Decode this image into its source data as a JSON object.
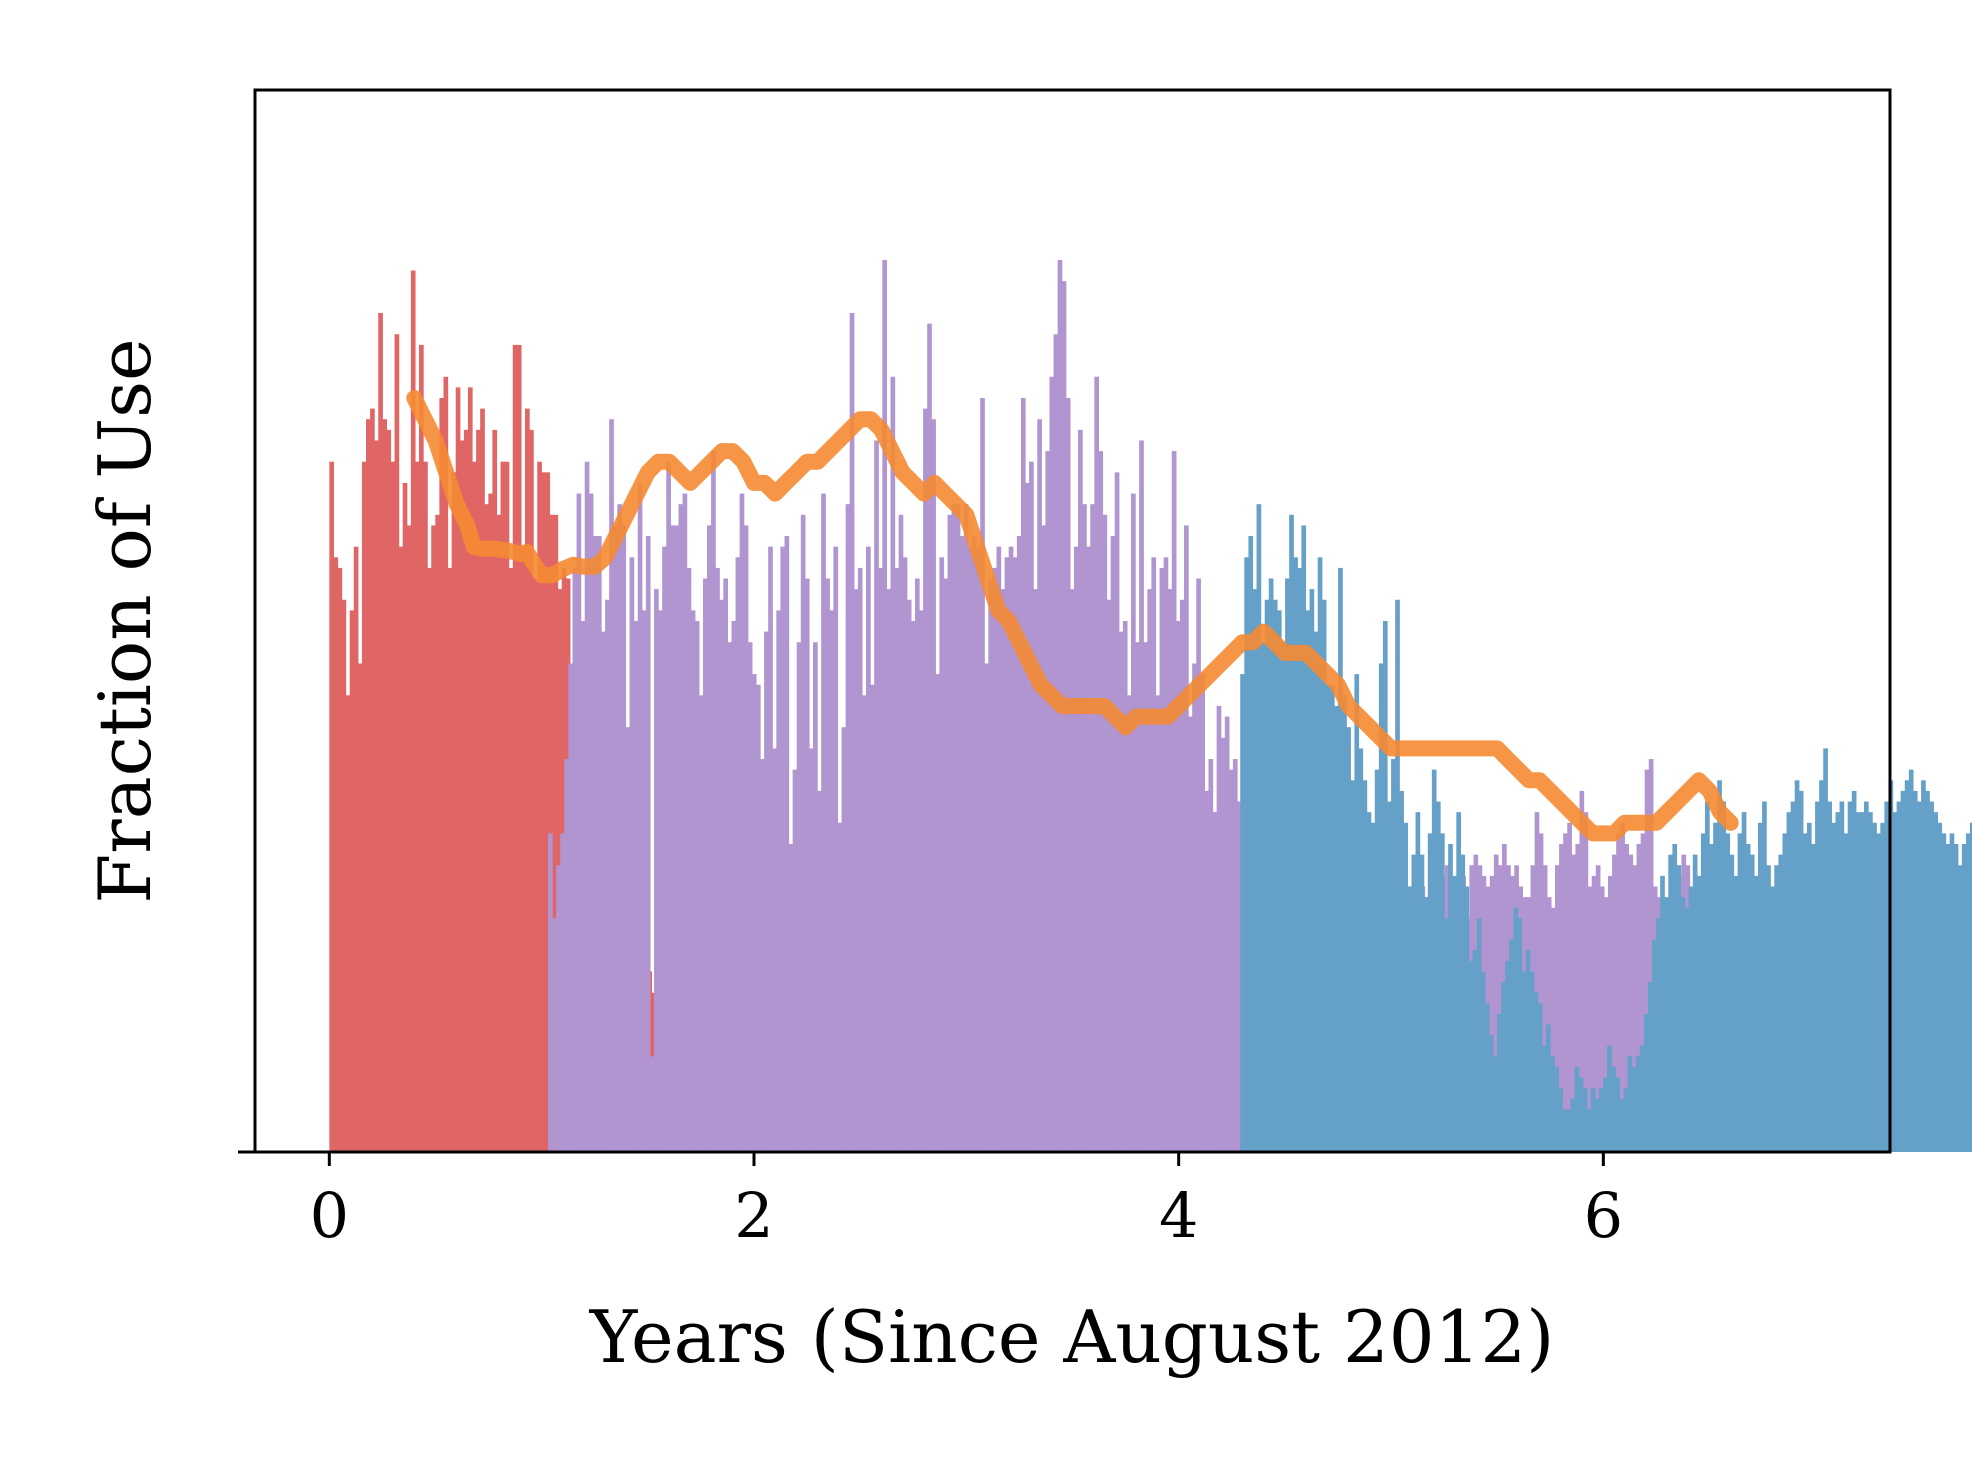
{
  "chart_data": {
    "type": "bar",
    "title": "",
    "xlabel": "Years (Since August 2012)",
    "ylabel": "Fraction of Use",
    "xlim": [
      -0.35,
      7.35
    ],
    "ylim": [
      0,
      1
    ],
    "xticks": [
      0,
      2,
      4,
      6
    ],
    "yticks": [],
    "grid": false,
    "legend": "none",
    "bar_width": 0.0192,
    "series": [
      {
        "color": "#e06666",
        "x_start": 0,
        "x_step": 0.0192,
        "values": [
          0.65,
          0.56,
          0.55,
          0.52,
          0.43,
          0.51,
          0.57,
          0.46,
          0.65,
          0.69,
          0.7,
          0.67,
          0.79,
          0.69,
          0.68,
          0.65,
          0.77,
          0.57,
          0.63,
          0.59,
          0.83,
          0.65,
          0.76,
          0.65,
          0.55,
          0.59,
          0.6,
          0.71,
          0.73,
          0.55,
          0.64,
          0.72,
          0.67,
          0.68,
          0.72,
          0.65,
          0.68,
          0.7,
          0.61,
          0.62,
          0.68,
          0.6,
          0.65,
          0.65,
          0.55,
          0.76,
          0.76,
          0.57,
          0.7,
          0.68,
          0.54,
          0.65,
          0.64,
          0.64,
          0.6,
          0.6,
          0.53,
          0.55,
          0.54,
          0.43,
          0.43,
          0.31,
          0.31,
          0.32,
          0.31,
          0.29,
          0.29,
          0.25,
          0.25,
          0.28,
          0.24,
          0.27,
          0.26,
          0.26,
          0.21,
          0.21,
          0.19,
          0.19,
          0.17,
          0.15,
          0.15,
          0.17,
          0.15,
          0.14,
          0.14,
          0.14,
          0.16,
          0.15,
          0.14,
          0.16
        ]
      },
      {
        "color": "#b095d0",
        "x_start": 1.03,
        "x_step": 0.0192,
        "values": [
          0.3,
          0.22,
          0.27,
          0.3,
          0.37,
          0.46,
          0.55,
          0.62,
          0.5,
          0.65,
          0.62,
          0.58,
          0.58,
          0.49,
          0.52,
          0.69,
          0.59,
          0.61,
          0.59,
          0.4,
          0.56,
          0.5,
          0.63,
          0.51,
          0.58,
          0.09,
          0.53,
          0.51,
          0.57,
          0.65,
          0.59,
          0.59,
          0.61,
          0.62,
          0.55,
          0.51,
          0.5,
          0.43,
          0.54,
          0.59,
          0.66,
          0.55,
          0.52,
          0.54,
          0.48,
          0.5,
          0.56,
          0.62,
          0.59,
          0.48,
          0.45,
          0.44,
          0.37,
          0.49,
          0.57,
          0.38,
          0.51,
          0.57,
          0.58,
          0.29,
          0.36,
          0.48,
          0.6,
          0.54,
          0.38,
          0.48,
          0.34,
          0.62,
          0.54,
          0.51,
          0.57,
          0.31,
          0.4,
          0.61,
          0.79,
          0.53,
          0.55,
          0.43,
          0.57,
          0.44,
          0.67,
          0.55,
          0.84,
          0.53,
          0.73,
          0.55,
          0.6,
          0.56,
          0.52,
          0.5,
          0.54,
          0.51,
          0.7,
          0.78,
          0.69,
          0.45,
          0.56,
          0.54,
          0.6,
          0.61,
          0.61,
          0.58,
          0.61,
          0.57,
          0.58,
          0.57,
          0.71,
          0.46,
          0.54,
          0.55,
          0.57,
          0.53,
          0.56,
          0.57,
          0.56,
          0.58,
          0.71,
          0.63,
          0.65,
          0.53,
          0.69,
          0.59,
          0.66,
          0.73,
          0.77,
          0.84,
          0.82,
          0.71,
          0.53,
          0.57,
          0.68,
          0.61,
          0.57,
          0.61,
          0.73,
          0.66,
          0.6,
          0.52,
          0.58,
          0.64,
          0.49,
          0.5,
          0.43,
          0.62,
          0.48,
          0.67,
          0.48,
          0.53,
          0.56,
          0.43,
          0.55,
          0.56,
          0.53,
          0.66,
          0.5,
          0.52,
          0.59,
          0.41,
          0.46,
          0.54,
          0.45,
          0.34,
          0.37,
          0.32,
          0.42,
          0.39,
          0.41,
          0.36,
          0.37,
          0.33,
          0.32,
          0.37,
          0.4,
          0.42,
          0.44,
          0.39,
          0.43,
          0.37,
          0.31,
          0.34,
          0.38,
          0.35,
          0.33,
          0.4,
          0.32,
          0.3,
          0.36,
          0.31,
          0.33,
          0.29,
          0.28,
          0.23,
          0.25,
          0.24,
          0.25,
          0.23,
          0.26,
          0.27,
          0.27,
          0.24,
          0.31,
          0.26,
          0.22,
          0.35,
          0.28,
          0.31,
          0.29,
          0.27,
          0.24,
          0.25,
          0.2,
          0.24,
          0.22,
          0.23,
          0.25,
          0.24,
          0.26,
          0.31,
          0.25,
          0.26,
          0.27,
          0.23,
          0.24,
          0.25,
          0.26,
          0.22,
          0.27,
          0.28,
          0.27,
          0.26,
          0.25,
          0.26,
          0.28,
          0.27,
          0.29,
          0.27,
          0.26,
          0.27,
          0.25,
          0.24,
          0.24,
          0.27,
          0.32,
          0.3,
          0.27,
          0.24,
          0.23,
          0.27,
          0.29,
          0.3,
          0.31,
          0.28,
          0.29,
          0.34,
          0.32,
          0.25,
          0.26,
          0.27,
          0.25,
          0.24,
          0.26,
          0.28,
          0.3,
          0.31,
          0.29,
          0.28,
          0.27,
          0.29,
          0.3,
          0.36,
          0.37,
          0.25,
          0.24,
          0.21,
          0.23,
          0.26,
          0.25,
          0.26,
          0.28,
          0.27,
          0.25,
          0.26,
          0.24,
          0.25,
          0.23,
          0.27,
          0.26
        ]
      },
      {
        "color": "#64a0c8",
        "x_start": 4.29,
        "x_step": 0.0192,
        "values": [
          0.45,
          0.56,
          0.58,
          0.53,
          0.61,
          0.48,
          0.52,
          0.54,
          0.52,
          0.51,
          0.48,
          0.54,
          0.6,
          0.56,
          0.55,
          0.59,
          0.51,
          0.53,
          0.49,
          0.56,
          0.52,
          0.44,
          0.44,
          0.42,
          0.55,
          0.43,
          0.4,
          0.35,
          0.45,
          0.38,
          0.35,
          0.32,
          0.31,
          0.36,
          0.46,
          0.5,
          0.33,
          0.37,
          0.52,
          0.34,
          0.31,
          0.25,
          0.28,
          0.32,
          0.28,
          0.24,
          0.3,
          0.36,
          0.33,
          0.3,
          0.22,
          0.29,
          0.26,
          0.32,
          0.28,
          0.25,
          0.18,
          0.19,
          0.22,
          0.17,
          0.14,
          0.11,
          0.09,
          0.13,
          0.16,
          0.18,
          0.2,
          0.23,
          0.22,
          0.17,
          0.19,
          0.17,
          0.15,
          0.14,
          0.1,
          0.12,
          0.09,
          0.08,
          0.06,
          0.04,
          0.04,
          0.05,
          0.08,
          0.07,
          0.06,
          0.04,
          0.06,
          0.05,
          0.06,
          0.07,
          0.1,
          0.08,
          0.07,
          0.05,
          0.06,
          0.09,
          0.08,
          0.09,
          0.1,
          0.13,
          0.16,
          0.2,
          0.22,
          0.26,
          0.24,
          0.28,
          0.29,
          0.27,
          0.24,
          0.23,
          0.25,
          0.28,
          0.26,
          0.3,
          0.33,
          0.29,
          0.31,
          0.35,
          0.33,
          0.3,
          0.28,
          0.26,
          0.3,
          0.32,
          0.29,
          0.28,
          0.26,
          0.31,
          0.33,
          0.27,
          0.25,
          0.27,
          0.28,
          0.3,
          0.32,
          0.33,
          0.35,
          0.34,
          0.3,
          0.31,
          0.29,
          0.33,
          0.35,
          0.38,
          0.33,
          0.31,
          0.32,
          0.33,
          0.3,
          0.33,
          0.34,
          0.32,
          0.32,
          0.33,
          0.32,
          0.31,
          0.3,
          0.31,
          0.33,
          0.35,
          0.32,
          0.33,
          0.34,
          0.35,
          0.36,
          0.34,
          0.33,
          0.35,
          0.34,
          0.33,
          0.32,
          0.31,
          0.3,
          0.29,
          0.3,
          0.29,
          0.27,
          0.29,
          0.3,
          0.31,
          0.28,
          0.29,
          0.27,
          0.29,
          0.3,
          0.28,
          0.28,
          0.27,
          0.26,
          0.25,
          0.24,
          0.26,
          0.24,
          0.22,
          0.21,
          0.2,
          0.2,
          0.22,
          0.21,
          0.2,
          0.2,
          0.21,
          0.22,
          0.21,
          0.21,
          0.22,
          0.21,
          0.2,
          0.22,
          0.23,
          0.23,
          0.22,
          0.21,
          0.21,
          0.2,
          0.19,
          0.2,
          0.21,
          0.2,
          0.19,
          0.21,
          0.22,
          0.23,
          0.22,
          0.2,
          0.21,
          0.2,
          0.19,
          0.18,
          0.19,
          0.2,
          0.22,
          0.21,
          0.2,
          0.19,
          0.18,
          0.17,
          0.18,
          0.16,
          0.17,
          0.18,
          0.2,
          0.19,
          0.18,
          0.17,
          0.18,
          0.19,
          0.18,
          0.16,
          0.17,
          0.18,
          0.19,
          0.17,
          0.16,
          0.18,
          0.17,
          0.16,
          0.15,
          0.17,
          0.18,
          0.19,
          0.18,
          0.17,
          0.16,
          0.17,
          0.18,
          0.16,
          0.17
        ]
      }
    ],
    "trend": {
      "color": "#f58a32",
      "points": [
        [
          0.4,
          0.71
        ],
        [
          0.45,
          0.69
        ],
        [
          0.5,
          0.67
        ],
        [
          0.55,
          0.64
        ],
        [
          0.6,
          0.61
        ],
        [
          0.65,
          0.59
        ],
        [
          0.68,
          0.57
        ],
        [
          0.72,
          0.568
        ],
        [
          0.78,
          0.568
        ],
        [
          0.85,
          0.566
        ],
        [
          0.9,
          0.563
        ],
        [
          0.93,
          0.565
        ],
        [
          0.96,
          0.555
        ],
        [
          1.0,
          0.543
        ],
        [
          1.05,
          0.543
        ],
        [
          1.1,
          0.549
        ],
        [
          1.15,
          0.553
        ],
        [
          1.2,
          0.551
        ],
        [
          1.25,
          0.551
        ],
        [
          1.3,
          0.56
        ],
        [
          1.35,
          0.58
        ],
        [
          1.4,
          0.6
        ],
        [
          1.45,
          0.62
        ],
        [
          1.5,
          0.64
        ],
        [
          1.55,
          0.65
        ],
        [
          1.6,
          0.65
        ],
        [
          1.65,
          0.64
        ],
        [
          1.7,
          0.63
        ],
        [
          1.75,
          0.64
        ],
        [
          1.8,
          0.65
        ],
        [
          1.85,
          0.66
        ],
        [
          1.9,
          0.66
        ],
        [
          1.95,
          0.65
        ],
        [
          2.0,
          0.63
        ],
        [
          2.05,
          0.63
        ],
        [
          2.1,
          0.62
        ],
        [
          2.15,
          0.63
        ],
        [
          2.2,
          0.64
        ],
        [
          2.25,
          0.65
        ],
        [
          2.3,
          0.65
        ],
        [
          2.35,
          0.66
        ],
        [
          2.4,
          0.67
        ],
        [
          2.45,
          0.68
        ],
        [
          2.5,
          0.69
        ],
        [
          2.55,
          0.69
        ],
        [
          2.6,
          0.68
        ],
        [
          2.65,
          0.66
        ],
        [
          2.7,
          0.64
        ],
        [
          2.75,
          0.63
        ],
        [
          2.8,
          0.62
        ],
        [
          2.85,
          0.63
        ],
        [
          2.9,
          0.62
        ],
        [
          2.95,
          0.61
        ],
        [
          3.0,
          0.6
        ],
        [
          3.05,
          0.57
        ],
        [
          3.1,
          0.54
        ],
        [
          3.15,
          0.51
        ],
        [
          3.2,
          0.5
        ],
        [
          3.25,
          0.48
        ],
        [
          3.3,
          0.46
        ],
        [
          3.35,
          0.44
        ],
        [
          3.4,
          0.43
        ],
        [
          3.45,
          0.42
        ],
        [
          3.5,
          0.42
        ],
        [
          3.55,
          0.42
        ],
        [
          3.6,
          0.42
        ],
        [
          3.65,
          0.42
        ],
        [
          3.7,
          0.41
        ],
        [
          3.75,
          0.4
        ],
        [
          3.8,
          0.41
        ],
        [
          3.85,
          0.41
        ],
        [
          3.9,
          0.41
        ],
        [
          3.95,
          0.41
        ],
        [
          4.0,
          0.42
        ],
        [
          4.05,
          0.43
        ],
        [
          4.1,
          0.44
        ],
        [
          4.15,
          0.45
        ],
        [
          4.2,
          0.46
        ],
        [
          4.25,
          0.47
        ],
        [
          4.3,
          0.48
        ],
        [
          4.35,
          0.48
        ],
        [
          4.4,
          0.49
        ],
        [
          4.45,
          0.48
        ],
        [
          4.5,
          0.47
        ],
        [
          4.55,
          0.47
        ],
        [
          4.6,
          0.47
        ],
        [
          4.65,
          0.46
        ],
        [
          4.7,
          0.45
        ],
        [
          4.75,
          0.44
        ],
        [
          4.8,
          0.42
        ],
        [
          4.85,
          0.41
        ],
        [
          4.9,
          0.4
        ],
        [
          4.95,
          0.39
        ],
        [
          5.0,
          0.38
        ],
        [
          5.05,
          0.38
        ],
        [
          5.1,
          0.38
        ],
        [
          5.15,
          0.38
        ],
        [
          5.2,
          0.38
        ],
        [
          5.25,
          0.38
        ],
        [
          5.3,
          0.38
        ],
        [
          5.35,
          0.38
        ],
        [
          5.4,
          0.38
        ],
        [
          5.45,
          0.38
        ],
        [
          5.5,
          0.38
        ],
        [
          5.55,
          0.37
        ],
        [
          5.6,
          0.36
        ],
        [
          5.65,
          0.35
        ],
        [
          5.7,
          0.35
        ],
        [
          5.75,
          0.34
        ],
        [
          5.8,
          0.33
        ],
        [
          5.85,
          0.32
        ],
        [
          5.9,
          0.31
        ],
        [
          5.95,
          0.3
        ],
        [
          6.0,
          0.3
        ],
        [
          6.05,
          0.3
        ],
        [
          6.1,
          0.31
        ],
        [
          6.15,
          0.31
        ],
        [
          6.2,
          0.31
        ],
        [
          6.25,
          0.31
        ],
        [
          6.3,
          0.32
        ],
        [
          6.35,
          0.33
        ],
        [
          6.4,
          0.34
        ],
        [
          6.45,
          0.35
        ],
        [
          6.5,
          0.34
        ],
        [
          6.55,
          0.32
        ],
        [
          6.6,
          0.31
        ]
      ]
    }
  }
}
